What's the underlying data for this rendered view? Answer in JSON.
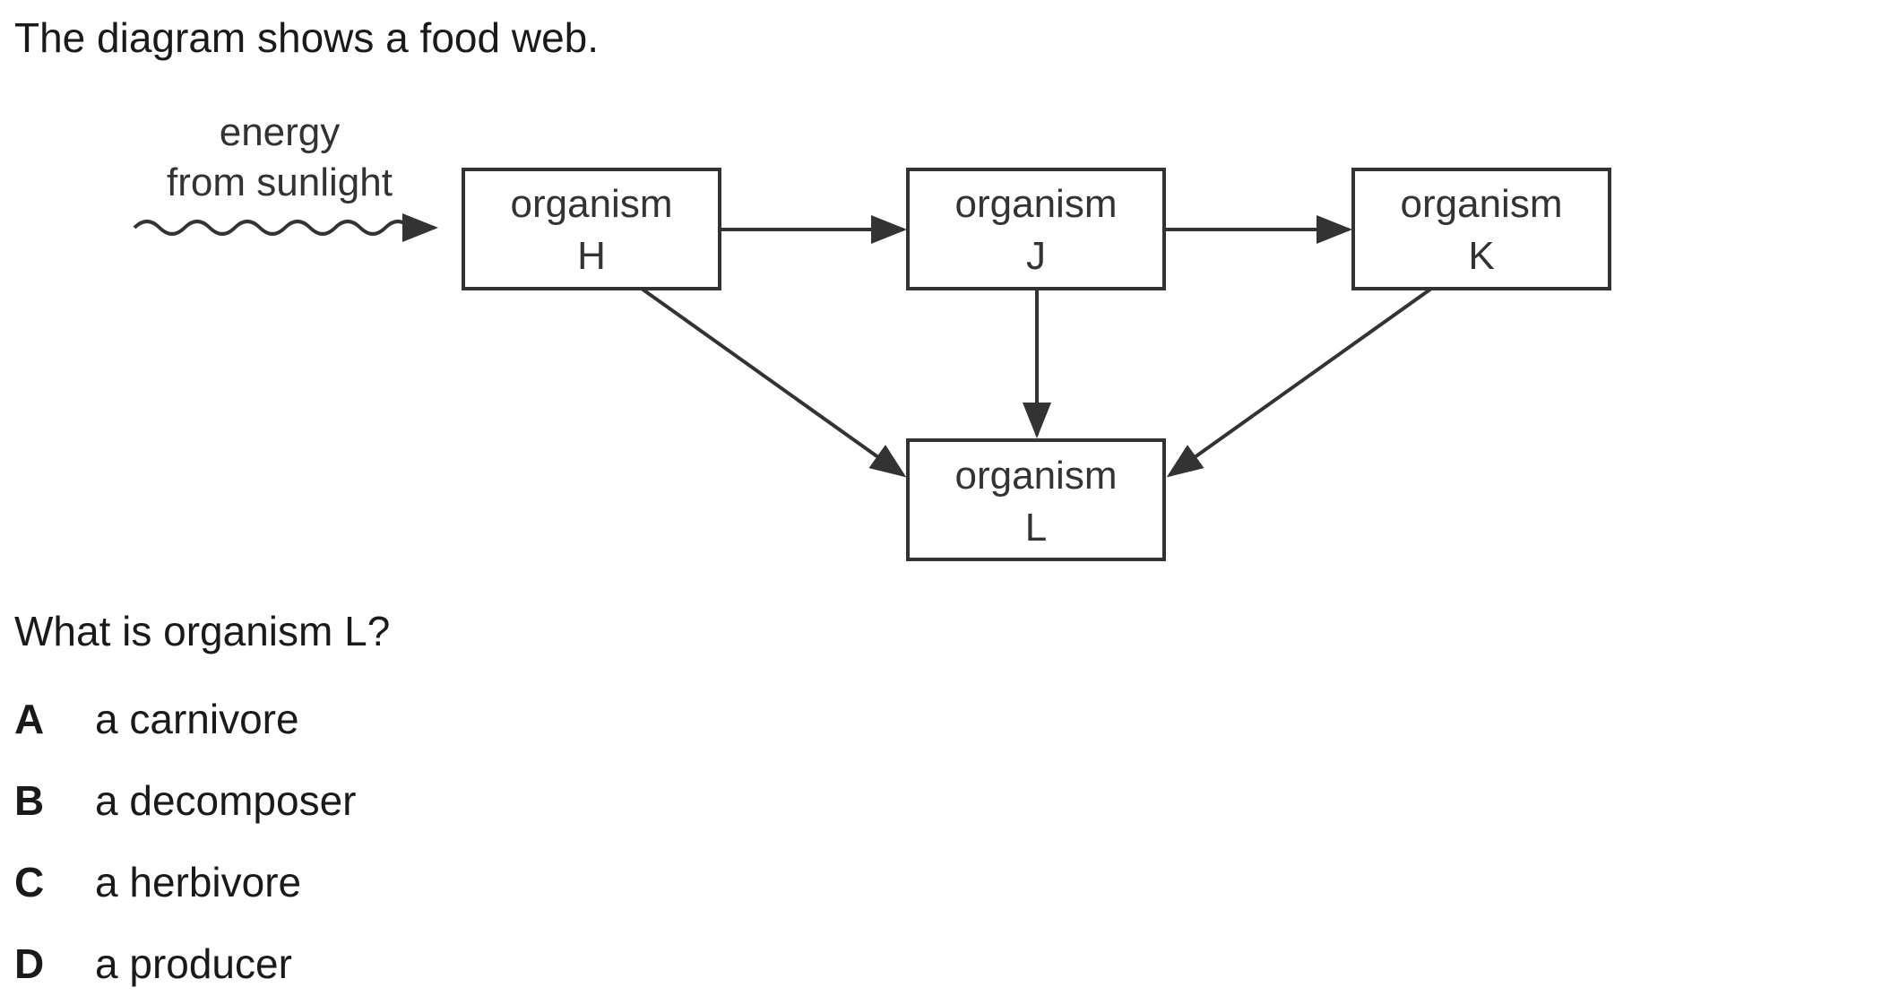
{
  "intro": "The diagram shows a food web.",
  "diagram": {
    "energy_label_line1": "energy",
    "energy_label_line2": "from sunlight",
    "nodes": [
      {
        "id": "H",
        "word": "organism",
        "letter": "H"
      },
      {
        "id": "J",
        "word": "organism",
        "letter": "J"
      },
      {
        "id": "K",
        "word": "organism",
        "letter": "K"
      },
      {
        "id": "L",
        "word": "organism",
        "letter": "L"
      }
    ],
    "edges": [
      {
        "from": "sunlight",
        "to": "H"
      },
      {
        "from": "H",
        "to": "J"
      },
      {
        "from": "J",
        "to": "K"
      },
      {
        "from": "H",
        "to": "L"
      },
      {
        "from": "J",
        "to": "L"
      },
      {
        "from": "K",
        "to": "L"
      }
    ]
  },
  "question": "What is organism L?",
  "options": [
    {
      "letter": "A",
      "text": "a carnivore"
    },
    {
      "letter": "B",
      "text": "a decomposer"
    },
    {
      "letter": "C",
      "text": "a herbivore"
    },
    {
      "letter": "D",
      "text": "a producer"
    }
  ]
}
